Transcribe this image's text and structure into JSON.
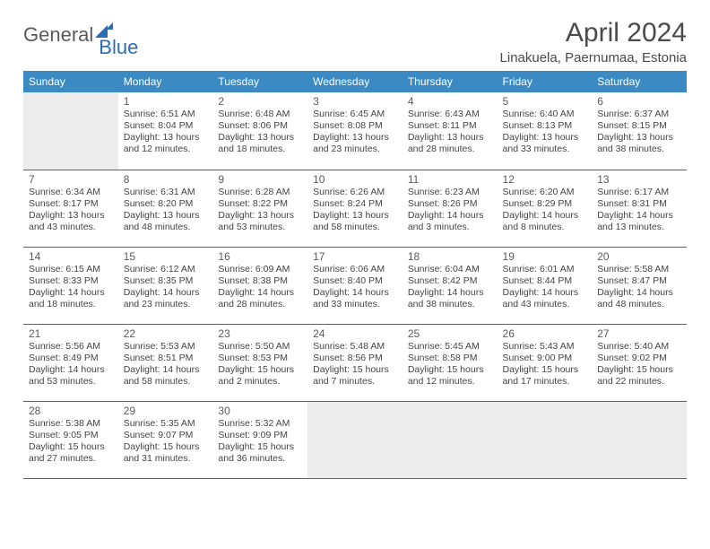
{
  "brand": {
    "part1": "General",
    "part2": "Blue"
  },
  "title": "April 2024",
  "location": "Linakuela, Paernumaa, Estonia",
  "colors": {
    "header_bg": "#3b8ac4",
    "header_text": "#ffffff",
    "rule": "#2a6db5",
    "empty_bg": "#ececec",
    "text": "#444444"
  },
  "day_headers": [
    "Sunday",
    "Monday",
    "Tuesday",
    "Wednesday",
    "Thursday",
    "Friday",
    "Saturday"
  ],
  "weeks": [
    [
      {
        "empty": true
      },
      {
        "n": "1",
        "sr": "Sunrise: 6:51 AM",
        "ss": "Sunset: 8:04 PM",
        "d1": "Daylight: 13 hours",
        "d2": "and 12 minutes."
      },
      {
        "n": "2",
        "sr": "Sunrise: 6:48 AM",
        "ss": "Sunset: 8:06 PM",
        "d1": "Daylight: 13 hours",
        "d2": "and 18 minutes."
      },
      {
        "n": "3",
        "sr": "Sunrise: 6:45 AM",
        "ss": "Sunset: 8:08 PM",
        "d1": "Daylight: 13 hours",
        "d2": "and 23 minutes."
      },
      {
        "n": "4",
        "sr": "Sunrise: 6:43 AM",
        "ss": "Sunset: 8:11 PM",
        "d1": "Daylight: 13 hours",
        "d2": "and 28 minutes."
      },
      {
        "n": "5",
        "sr": "Sunrise: 6:40 AM",
        "ss": "Sunset: 8:13 PM",
        "d1": "Daylight: 13 hours",
        "d2": "and 33 minutes."
      },
      {
        "n": "6",
        "sr": "Sunrise: 6:37 AM",
        "ss": "Sunset: 8:15 PM",
        "d1": "Daylight: 13 hours",
        "d2": "and 38 minutes."
      }
    ],
    [
      {
        "n": "7",
        "sr": "Sunrise: 6:34 AM",
        "ss": "Sunset: 8:17 PM",
        "d1": "Daylight: 13 hours",
        "d2": "and 43 minutes."
      },
      {
        "n": "8",
        "sr": "Sunrise: 6:31 AM",
        "ss": "Sunset: 8:20 PM",
        "d1": "Daylight: 13 hours",
        "d2": "and 48 minutes."
      },
      {
        "n": "9",
        "sr": "Sunrise: 6:28 AM",
        "ss": "Sunset: 8:22 PM",
        "d1": "Daylight: 13 hours",
        "d2": "and 53 minutes."
      },
      {
        "n": "10",
        "sr": "Sunrise: 6:26 AM",
        "ss": "Sunset: 8:24 PM",
        "d1": "Daylight: 13 hours",
        "d2": "and 58 minutes."
      },
      {
        "n": "11",
        "sr": "Sunrise: 6:23 AM",
        "ss": "Sunset: 8:26 PM",
        "d1": "Daylight: 14 hours",
        "d2": "and 3 minutes."
      },
      {
        "n": "12",
        "sr": "Sunrise: 6:20 AM",
        "ss": "Sunset: 8:29 PM",
        "d1": "Daylight: 14 hours",
        "d2": "and 8 minutes."
      },
      {
        "n": "13",
        "sr": "Sunrise: 6:17 AM",
        "ss": "Sunset: 8:31 PM",
        "d1": "Daylight: 14 hours",
        "d2": "and 13 minutes."
      }
    ],
    [
      {
        "n": "14",
        "sr": "Sunrise: 6:15 AM",
        "ss": "Sunset: 8:33 PM",
        "d1": "Daylight: 14 hours",
        "d2": "and 18 minutes."
      },
      {
        "n": "15",
        "sr": "Sunrise: 6:12 AM",
        "ss": "Sunset: 8:35 PM",
        "d1": "Daylight: 14 hours",
        "d2": "and 23 minutes."
      },
      {
        "n": "16",
        "sr": "Sunrise: 6:09 AM",
        "ss": "Sunset: 8:38 PM",
        "d1": "Daylight: 14 hours",
        "d2": "and 28 minutes."
      },
      {
        "n": "17",
        "sr": "Sunrise: 6:06 AM",
        "ss": "Sunset: 8:40 PM",
        "d1": "Daylight: 14 hours",
        "d2": "and 33 minutes."
      },
      {
        "n": "18",
        "sr": "Sunrise: 6:04 AM",
        "ss": "Sunset: 8:42 PM",
        "d1": "Daylight: 14 hours",
        "d2": "and 38 minutes."
      },
      {
        "n": "19",
        "sr": "Sunrise: 6:01 AM",
        "ss": "Sunset: 8:44 PM",
        "d1": "Daylight: 14 hours",
        "d2": "and 43 minutes."
      },
      {
        "n": "20",
        "sr": "Sunrise: 5:58 AM",
        "ss": "Sunset: 8:47 PM",
        "d1": "Daylight: 14 hours",
        "d2": "and 48 minutes."
      }
    ],
    [
      {
        "n": "21",
        "sr": "Sunrise: 5:56 AM",
        "ss": "Sunset: 8:49 PM",
        "d1": "Daylight: 14 hours",
        "d2": "and 53 minutes."
      },
      {
        "n": "22",
        "sr": "Sunrise: 5:53 AM",
        "ss": "Sunset: 8:51 PM",
        "d1": "Daylight: 14 hours",
        "d2": "and 58 minutes."
      },
      {
        "n": "23",
        "sr": "Sunrise: 5:50 AM",
        "ss": "Sunset: 8:53 PM",
        "d1": "Daylight: 15 hours",
        "d2": "and 2 minutes."
      },
      {
        "n": "24",
        "sr": "Sunrise: 5:48 AM",
        "ss": "Sunset: 8:56 PM",
        "d1": "Daylight: 15 hours",
        "d2": "and 7 minutes."
      },
      {
        "n": "25",
        "sr": "Sunrise: 5:45 AM",
        "ss": "Sunset: 8:58 PM",
        "d1": "Daylight: 15 hours",
        "d2": "and 12 minutes."
      },
      {
        "n": "26",
        "sr": "Sunrise: 5:43 AM",
        "ss": "Sunset: 9:00 PM",
        "d1": "Daylight: 15 hours",
        "d2": "and 17 minutes."
      },
      {
        "n": "27",
        "sr": "Sunrise: 5:40 AM",
        "ss": "Sunset: 9:02 PM",
        "d1": "Daylight: 15 hours",
        "d2": "and 22 minutes."
      }
    ],
    [
      {
        "n": "28",
        "sr": "Sunrise: 5:38 AM",
        "ss": "Sunset: 9:05 PM",
        "d1": "Daylight: 15 hours",
        "d2": "and 27 minutes."
      },
      {
        "n": "29",
        "sr": "Sunrise: 5:35 AM",
        "ss": "Sunset: 9:07 PM",
        "d1": "Daylight: 15 hours",
        "d2": "and 31 minutes."
      },
      {
        "n": "30",
        "sr": "Sunrise: 5:32 AM",
        "ss": "Sunset: 9:09 PM",
        "d1": "Daylight: 15 hours",
        "d2": "and 36 minutes."
      },
      {
        "empty": true
      },
      {
        "empty": true
      },
      {
        "empty": true
      },
      {
        "empty": true
      }
    ]
  ]
}
